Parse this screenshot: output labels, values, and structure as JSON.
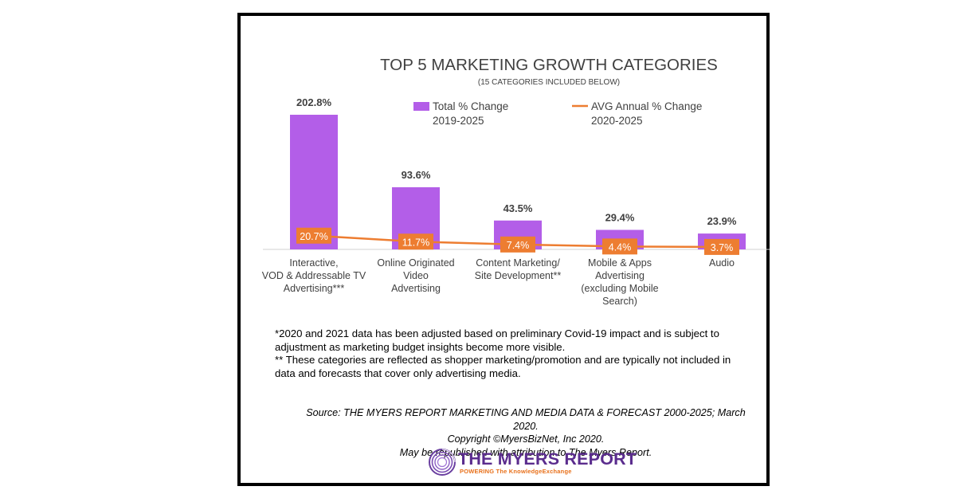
{
  "chart_data": {
    "type": "bar",
    "title": "TOP 5 MARKETING GROWTH CATEGORIES",
    "subtitle": "(15 CATEGORIES INCLUDED BELOW)",
    "categories": [
      [
        "Interactive,",
        "VOD & Addressable TV",
        "Advertising***"
      ],
      [
        "Online Originated",
        "Video",
        "Advertising"
      ],
      [
        "Content Marketing/",
        "Site Development**"
      ],
      [
        "Mobile & Apps",
        "Advertising",
        "(excluding Mobile",
        "Search)"
      ],
      [
        "Audio"
      ]
    ],
    "series": [
      {
        "name": "Total % Change 2019-2025",
        "legend_lines": [
          "Total % Change",
          "2019-2025"
        ],
        "type": "bar",
        "color": "#b35ee8",
        "values": [
          202.8,
          93.6,
          43.5,
          29.4,
          23.9
        ],
        "labels": [
          "202.8%",
          "93.6%",
          "43.5%",
          "29.4%",
          "23.9%"
        ]
      },
      {
        "name": "AVG Annual % Change 2020-2025",
        "legend_lines": [
          "AVG Annual % Change",
          "2020-2025"
        ],
        "type": "line",
        "color": "#ed7d31",
        "values": [
          20.7,
          11.7,
          7.4,
          4.4,
          3.7
        ],
        "labels": [
          "20.7%",
          "11.7%",
          "7.4%",
          "4.4%",
          "3.7%"
        ]
      }
    ],
    "ylim": [
      0,
      240
    ],
    "xlabel": "",
    "ylabel": "",
    "legend": "top-center",
    "grid": false
  },
  "notes": [
    "*2020 and 2021 data has been adjusted based on preliminary Covid-19 impact and is subject to",
    "adjustment as marketing budget insights become more visible.",
    "** These categories are reflected as shopper marketing/promotion and are typically not included in",
    "data and forecasts that cover only advertising media."
  ],
  "source": [
    "Source: THE MYERS REPORT MARKETING AND MEDIA DATA & FORECAST 2000-2025; March 2020.",
    "Copyright ©MyersBizNet, Inc 2020.",
    "May be republished with attribution to The Myers Report."
  ],
  "logo": {
    "name": "THE MYERS REPORT",
    "tagline": "POWERING The KnowledgeExchange",
    "name_color": "#5b2d8e",
    "tagline_color": "#e8701a"
  },
  "footer_mark": "· · ·"
}
